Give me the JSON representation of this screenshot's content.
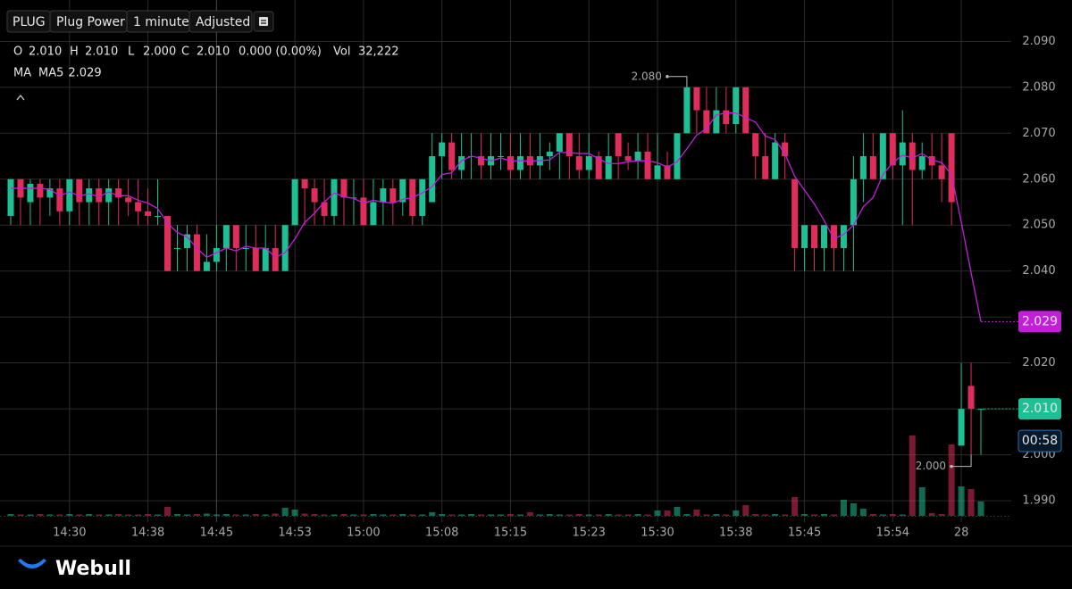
{
  "header": {
    "symbol": "PLUG",
    "name": "Plug Power",
    "interval": "1 minute",
    "adjustment": "Adjusted",
    "quote": {
      "items": [
        {
          "key": "O",
          "value": "2.010"
        },
        {
          "key": "H",
          "value": "2.010"
        },
        {
          "key": "L",
          "value": "2.000"
        },
        {
          "key": "C",
          "value": "2.010"
        }
      ],
      "change": "0.000 (0.00%)",
      "volume_key": "Vol",
      "volume": "32,222"
    },
    "indicator": "MA"
  },
  "footer": {
    "brand": "Webull"
  },
  "chart_data": {
    "type": "candlestick",
    "categories": [
      null,
      null,
      null,
      null,
      null,
      null,
      "14:30",
      null,
      null,
      null,
      null,
      null,
      null,
      null,
      "14:38",
      null,
      null,
      null,
      null,
      null,
      null,
      "14:45",
      null,
      null,
      null,
      null,
      null,
      null,
      null,
      "14:53",
      null,
      null,
      null,
      null,
      null,
      null,
      "15:00",
      null,
      null,
      null,
      null,
      null,
      null,
      null,
      "15:08",
      null,
      null,
      null,
      null,
      null,
      null,
      "15:15",
      null,
      null,
      null,
      null,
      null,
      null,
      null,
      "15:23",
      null,
      null,
      null,
      null,
      null,
      null,
      "15:30",
      null,
      null,
      null,
      null,
      null,
      null,
      null,
      "15:38",
      null,
      null,
      null,
      null,
      null,
      null,
      "15:45",
      null,
      null,
      null,
      null,
      null,
      null,
      null,
      null,
      "15:54",
      null,
      null,
      null,
      null,
      null,
      null,
      "28",
      null,
      null
    ],
    "open": [
      2.052,
      2.06,
      2.055,
      2.059,
      2.056,
      2.058,
      2.053,
      2.06,
      2.055,
      2.058,
      2.055,
      2.058,
      2.056,
      2.055,
      2.053,
      2.052,
      2.052,
      2.045,
      2.045,
      2.048,
      2.04,
      2.042,
      2.045,
      2.05,
      2.045,
      2.045,
      2.04,
      2.045,
      2.04,
      2.05,
      2.06,
      2.058,
      2.055,
      2.052,
      2.06,
      2.056,
      2.056,
      2.05,
      2.055,
      2.058,
      2.055,
      2.06,
      2.052,
      2.055,
      2.065,
      2.068,
      2.062,
      2.065,
      2.065,
      2.063,
      2.065,
      2.065,
      2.062,
      2.065,
      2.063,
      2.065,
      2.066,
      2.07,
      2.065,
      2.062,
      2.065,
      2.06,
      2.07,
      2.065,
      2.064,
      2.066,
      2.06,
      2.063,
      2.06,
      2.07,
      2.08,
      2.075,
      2.07,
      2.075,
      2.072,
      2.08,
      2.07,
      2.065,
      2.06,
      2.068,
      2.06,
      2.045,
      2.05,
      2.045,
      2.05,
      2.045,
      2.05,
      2.06,
      2.065,
      2.06,
      2.07,
      2.063,
      2.068,
      2.062,
      2.065,
      2.063,
      2.07,
      2.002,
      2.015,
      2.01
    ],
    "high": [
      2.06,
      2.06,
      2.06,
      2.06,
      2.06,
      2.06,
      2.06,
      2.06,
      2.06,
      2.06,
      2.06,
      2.06,
      2.06,
      2.06,
      2.058,
      2.06,
      2.052,
      2.05,
      2.05,
      2.05,
      2.048,
      2.05,
      2.05,
      2.05,
      2.05,
      2.05,
      2.05,
      2.05,
      2.05,
      2.06,
      2.06,
      2.06,
      2.06,
      2.06,
      2.06,
      2.06,
      2.06,
      2.06,
      2.06,
      2.06,
      2.06,
      2.06,
      2.06,
      2.07,
      2.07,
      2.07,
      2.07,
      2.07,
      2.07,
      2.07,
      2.07,
      2.07,
      2.07,
      2.07,
      2.07,
      2.068,
      2.07,
      2.07,
      2.07,
      2.07,
      2.066,
      2.07,
      2.07,
      2.068,
      2.07,
      2.07,
      2.07,
      2.066,
      2.07,
      2.08,
      2.08,
      2.08,
      2.08,
      2.08,
      2.08,
      2.08,
      2.07,
      2.07,
      2.07,
      2.07,
      2.06,
      2.05,
      2.05,
      2.05,
      2.05,
      2.05,
      2.065,
      2.07,
      2.07,
      2.07,
      2.07,
      2.075,
      2.07,
      2.068,
      2.07,
      2.07,
      2.07,
      2.02,
      2.02,
      2.01
    ],
    "low": [
      2.05,
      2.05,
      2.05,
      2.05,
      2.052,
      2.05,
      2.05,
      2.05,
      2.05,
      2.05,
      2.05,
      2.05,
      2.052,
      2.05,
      2.05,
      2.05,
      2.04,
      2.04,
      2.04,
      2.04,
      2.04,
      2.04,
      2.04,
      2.04,
      2.04,
      2.04,
      2.04,
      2.04,
      2.04,
      2.05,
      2.05,
      2.05,
      2.05,
      2.05,
      2.05,
      2.05,
      2.05,
      2.05,
      2.05,
      2.05,
      2.052,
      2.05,
      2.05,
      2.055,
      2.06,
      2.06,
      2.06,
      2.06,
      2.06,
      2.06,
      2.062,
      2.06,
      2.06,
      2.06,
      2.06,
      2.062,
      2.06,
      2.06,
      2.06,
      2.06,
      2.06,
      2.06,
      2.06,
      2.062,
      2.06,
      2.06,
      2.06,
      2.06,
      2.06,
      2.07,
      2.07,
      2.07,
      2.07,
      2.07,
      2.07,
      2.07,
      2.06,
      2.06,
      2.06,
      2.06,
      2.04,
      2.04,
      2.04,
      2.04,
      2.04,
      2.04,
      2.04,
      2.055,
      2.06,
      2.06,
      2.06,
      2.05,
      2.05,
      2.06,
      2.06,
      2.055,
      2.05,
      2.002,
      2.0,
      2.0
    ],
    "close": [
      2.06,
      2.056,
      2.059,
      2.056,
      2.058,
      2.053,
      2.06,
      2.055,
      2.058,
      2.055,
      2.058,
      2.056,
      2.055,
      2.053,
      2.052,
      2.052,
      2.04,
      2.045,
      2.048,
      2.04,
      2.042,
      2.045,
      2.05,
      2.045,
      2.045,
      2.04,
      2.045,
      2.04,
      2.05,
      2.06,
      2.058,
      2.055,
      2.052,
      2.06,
      2.056,
      2.056,
      2.05,
      2.055,
      2.058,
      2.055,
      2.06,
      2.052,
      2.06,
      2.065,
      2.068,
      2.062,
      2.065,
      2.065,
      2.063,
      2.065,
      2.065,
      2.062,
      2.065,
      2.063,
      2.065,
      2.066,
      2.07,
      2.065,
      2.062,
      2.065,
      2.06,
      2.065,
      2.065,
      2.064,
      2.066,
      2.06,
      2.063,
      2.06,
      2.07,
      2.08,
      2.075,
      2.07,
      2.075,
      2.072,
      2.08,
      2.07,
      2.065,
      2.06,
      2.068,
      2.065,
      2.045,
      2.05,
      2.045,
      2.05,
      2.045,
      2.05,
      2.06,
      2.065,
      2.06,
      2.07,
      2.063,
      2.068,
      2.062,
      2.065,
      2.063,
      2.06,
      2.055,
      2.01,
      2.01,
      2.01
    ],
    "volume": [
      4000,
      3000,
      3000,
      4000,
      3000,
      3000,
      4000,
      3000,
      4000,
      3000,
      3000,
      4000,
      3000,
      3000,
      4000,
      3000,
      20000,
      4000,
      3000,
      4000,
      5000,
      3000,
      4000,
      3000,
      3000,
      4000,
      3000,
      5000,
      18000,
      14000,
      5000,
      4000,
      3000,
      3000,
      4000,
      3000,
      3000,
      4000,
      3000,
      3000,
      4000,
      3000,
      3000,
      8000,
      4000,
      3000,
      3000,
      4000,
      3000,
      3000,
      3000,
      4000,
      3000,
      8000,
      3000,
      4000,
      3000,
      3000,
      4000,
      3000,
      3000,
      4000,
      3000,
      3000,
      4000,
      3000,
      12000,
      12000,
      20000,
      4000,
      14000,
      3000,
      4000,
      3000,
      12000,
      24000,
      4000,
      3000,
      4000,
      3000,
      42000,
      4000,
      3000,
      4000,
      3000,
      36000,
      28000,
      16000,
      4000,
      3000,
      4000,
      3000,
      180000,
      64000,
      6000,
      4000,
      160000,
      66000,
      60000,
      32222
    ],
    "close_last_label": "2.010",
    "countdown": "00:58",
    "ma": {
      "name": "MA5",
      "color": "#c21fd8",
      "last_label": "2.029",
      "values": [
        2.058,
        2.058,
        2.058,
        2.058,
        2.0578,
        2.0564,
        2.0572,
        2.0564,
        2.0568,
        2.0562,
        2.0572,
        2.0564,
        2.0564,
        2.0554,
        2.0548,
        2.0536,
        2.0504,
        2.0484,
        2.0474,
        2.045,
        2.043,
        2.044,
        2.045,
        2.0444,
        2.0454,
        2.045,
        2.045,
        2.043,
        2.044,
        2.047,
        2.0506,
        2.0526,
        2.055,
        2.057,
        2.0562,
        2.0558,
        2.0548,
        2.0554,
        2.055,
        2.0548,
        2.0556,
        2.056,
        2.057,
        2.0584,
        2.061,
        2.0614,
        2.064,
        2.065,
        2.0646,
        2.064,
        2.0646,
        2.064,
        2.064,
        2.064,
        2.064,
        2.0642,
        2.0658,
        2.0658,
        2.0656,
        2.0656,
        2.0644,
        2.0634,
        2.0634,
        2.0638,
        2.064,
        2.064,
        2.0636,
        2.0626,
        2.0638,
        2.0666,
        2.0696,
        2.071,
        2.074,
        2.0744,
        2.0744,
        2.0734,
        2.0724,
        2.0694,
        2.0686,
        2.0656,
        2.0606,
        2.0576,
        2.0546,
        2.051,
        2.047,
        2.048,
        2.05,
        2.054,
        2.056,
        2.061,
        2.0636,
        2.0652,
        2.0646,
        2.0656,
        2.0642,
        2.0636,
        2.061,
        2.0506,
        2.0396,
        2.029
      ]
    },
    "high_mark": {
      "value": 2.08,
      "label": "2.080"
    },
    "low_mark": {
      "value": 2.0,
      "label": "2.000"
    },
    "ylim": [
      1.984,
      2.099
    ],
    "yticks": [
      {
        "value": 1.99,
        "label": "1.990"
      },
      {
        "value": 2.0,
        "label": "2.000"
      },
      {
        "value": 2.01,
        "label": "2.010"
      },
      {
        "value": 2.02,
        "label": "2.020"
      },
      {
        "value": 2.03,
        "label": "2.030"
      },
      {
        "value": 2.04,
        "label": "2.040"
      },
      {
        "value": 2.05,
        "label": "2.050"
      },
      {
        "value": 2.06,
        "label": "2.060"
      },
      {
        "value": 2.07,
        "label": "2.070"
      },
      {
        "value": 2.08,
        "label": "2.080"
      },
      {
        "value": 2.09,
        "label": "2.090"
      }
    ],
    "grid": true,
    "up_color": "#1fbf95",
    "down_color": "#e02d5c"
  }
}
